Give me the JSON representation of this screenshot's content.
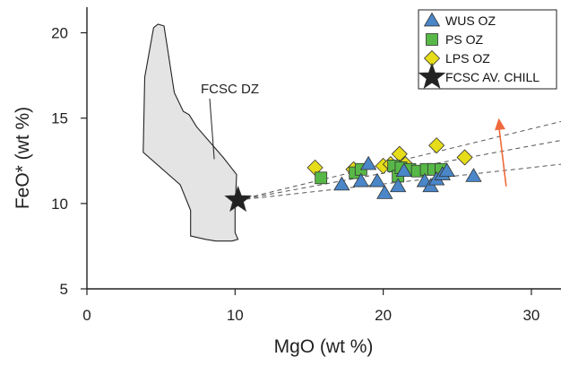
{
  "chart_data": {
    "type": "scatter",
    "xlabel": "MgO (wt %)",
    "ylabel": "FeO* (wt %)",
    "xlim": [
      0,
      32
    ],
    "ylim": [
      5,
      21.5
    ],
    "xticks": [
      "0",
      "10",
      "20",
      "30"
    ],
    "yticks": [
      "5",
      "10",
      "15",
      "20"
    ],
    "grid": false,
    "legend_position": "top-right",
    "series": [
      {
        "name": "WUS OZ",
        "marker": "triangle",
        "color": "#4a86c8",
        "points": [
          [
            17.2,
            11.1
          ],
          [
            18.5,
            11.3
          ],
          [
            19.0,
            12.3
          ],
          [
            19.6,
            11.3
          ],
          [
            20.1,
            10.6
          ],
          [
            21.0,
            11.0
          ],
          [
            21.4,
            11.9
          ],
          [
            22.8,
            11.3
          ],
          [
            23.2,
            11.0
          ],
          [
            23.6,
            11.4
          ],
          [
            24.0,
            11.7
          ],
          [
            24.3,
            11.9
          ],
          [
            26.1,
            11.6
          ]
        ]
      },
      {
        "name": "PS OZ",
        "marker": "square",
        "color": "#58b847",
        "points": [
          [
            15.8,
            11.5
          ],
          [
            18.1,
            11.8
          ],
          [
            18.5,
            12.0
          ],
          [
            20.7,
            12.2
          ],
          [
            21.0,
            11.6
          ],
          [
            21.2,
            12.1
          ],
          [
            21.8,
            12.0
          ],
          [
            22.3,
            11.9
          ],
          [
            22.9,
            12.0
          ],
          [
            23.4,
            12.0
          ],
          [
            23.9,
            12.0
          ]
        ]
      },
      {
        "name": "LPS OZ",
        "marker": "diamond",
        "color": "#e6dc1a",
        "points": [
          [
            15.4,
            12.1
          ],
          [
            18.0,
            12.0
          ],
          [
            20.0,
            12.2
          ],
          [
            20.5,
            12.3
          ],
          [
            21.1,
            12.9
          ],
          [
            21.5,
            12.3
          ],
          [
            23.6,
            13.4
          ],
          [
            25.5,
            12.7
          ]
        ]
      },
      {
        "name": "FCSC AV. CHILL",
        "marker": "star",
        "color": "#222222",
        "points": [
          [
            10.2,
            10.2
          ]
        ]
      }
    ],
    "region": {
      "label": "FCSC DZ",
      "color": "#e4e4e4",
      "polygon": [
        [
          3.8,
          13.0
        ],
        [
          3.9,
          17.4
        ],
        [
          4.5,
          20.3
        ],
        [
          4.8,
          20.5
        ],
        [
          5.2,
          20.4
        ],
        [
          5.4,
          19.3
        ],
        [
          5.9,
          16.5
        ],
        [
          6.5,
          15.4
        ],
        [
          6.9,
          15.2
        ],
        [
          7.4,
          14.5
        ],
        [
          9.2,
          12.7
        ],
        [
          10.1,
          11.7
        ],
        [
          10.0,
          9.6
        ],
        [
          10.0,
          8.3
        ],
        [
          10.2,
          7.9
        ],
        [
          9.8,
          7.8
        ],
        [
          8.7,
          7.8
        ],
        [
          8.0,
          7.9
        ],
        [
          7.0,
          8.1
        ],
        [
          7.0,
          9.6
        ],
        [
          6.3,
          11.1
        ]
      ]
    },
    "trend_lines": [
      {
        "from": [
          10.2,
          10.2
        ],
        "to": [
          32.0,
          14.8
        ]
      },
      {
        "from": [
          10.2,
          10.2
        ],
        "to": [
          32.0,
          13.7
        ]
      },
      {
        "from": [
          10.2,
          10.2
        ],
        "to": [
          32.0,
          12.3
        ]
      }
    ],
    "arrow": {
      "from": [
        28.3,
        11.0
      ],
      "to": [
        27.8,
        15.0
      ],
      "color": "#ee6a3c"
    }
  }
}
